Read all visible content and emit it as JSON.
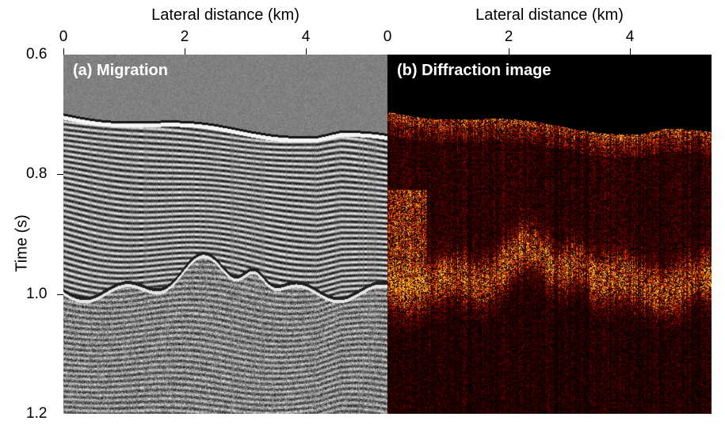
{
  "chart_data": [
    {
      "type": "heatmap",
      "title": "(a) Migration",
      "xlabel": "Lateral distance (km)",
      "ylabel": "Time (s)",
      "xlim": [
        0,
        5.35
      ],
      "ylim": [
        0.6,
        1.2
      ],
      "xticks": [
        "0",
        "2",
        "4"
      ],
      "yticks": [
        "0.6",
        "0.8",
        "1.0",
        "1.2"
      ],
      "colormap": "gray"
    },
    {
      "type": "heatmap",
      "title": "(b) Diffraction image",
      "xlabel": "Lateral distance (km)",
      "ylabel": "",
      "xlim": [
        0,
        5.35
      ],
      "ylim": [
        0.6,
        1.2
      ],
      "xticks": [
        "0",
        "2",
        "4"
      ],
      "yticks": [],
      "colormap": "black-red-yellow"
    }
  ],
  "colors": {
    "diffraction_hot": "#ff9a2a",
    "migration_bg": "#808080"
  }
}
